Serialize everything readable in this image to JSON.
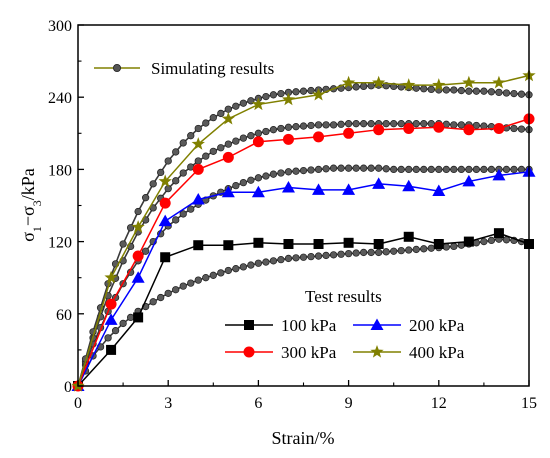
{
  "chart_data": {
    "type": "line",
    "xlabel": "Strain/%",
    "ylabel_parts": [
      "σ",
      "1",
      "−σ",
      "3",
      "/kPa"
    ],
    "xlim": [
      0,
      15
    ],
    "ylim": [
      0,
      300
    ],
    "xticks": [
      "0",
      "3",
      "6",
      "9",
      "12",
      "15"
    ],
    "yticks": [
      "0",
      "60",
      "120",
      "180",
      "240",
      "300"
    ],
    "grid": false,
    "legend_simulating": {
      "placement": "top-left",
      "label": "Simulating results"
    },
    "legend_test": {
      "placement": "bottom-right",
      "title": "Test results"
    },
    "test_series": [
      {
        "name": "100 kPa",
        "color": "#000000",
        "marker": "square",
        "x": [
          0,
          1.1,
          2.0,
          2.9,
          4.0,
          5.0,
          6.0,
          7.0,
          8.0,
          9.0,
          10.0,
          11.0,
          12.0,
          13.0,
          14.0,
          15.0
        ],
        "y": [
          0,
          30,
          57,
          107,
          117,
          117,
          119,
          118,
          118,
          119,
          118,
          124,
          118,
          120,
          127,
          118
        ]
      },
      {
        "name": "200 kPa",
        "color": "#0000ff",
        "marker": "triangle",
        "x": [
          0,
          1.1,
          2.0,
          2.9,
          4.0,
          5.0,
          6.0,
          7.0,
          8.0,
          9.0,
          10.0,
          11.0,
          12.0,
          13.0,
          14.0,
          15.0
        ],
        "y": [
          0,
          55,
          90,
          137,
          155,
          161,
          161,
          165,
          163,
          163,
          168,
          166,
          162,
          170,
          175,
          178
        ]
      },
      {
        "name": "300 kPa",
        "color": "#ff0000",
        "marker": "circle",
        "x": [
          0,
          1.1,
          2.0,
          2.9,
          4.0,
          5.0,
          6.0,
          7.0,
          8.0,
          9.0,
          10.0,
          11.0,
          12.0,
          13.0,
          14.0,
          15.0
        ],
        "y": [
          0,
          68,
          108,
          152,
          180,
          190,
          203,
          205,
          207,
          210,
          213,
          214,
          215,
          213,
          214,
          222
        ]
      },
      {
        "name": "400 kPa",
        "color": "#808000",
        "marker": "star",
        "x": [
          0,
          1.1,
          2.0,
          2.9,
          4.0,
          5.0,
          6.0,
          7.0,
          8.0,
          9.0,
          10.0,
          11.0,
          12.0,
          13.0,
          14.0,
          15.0
        ],
        "y": [
          0,
          90,
          132,
          170,
          201,
          222,
          234,
          238,
          242,
          252,
          252,
          250,
          250,
          252,
          252,
          258
        ]
      }
    ],
    "simulation_series": [
      {
        "name": "100 kPa",
        "x": [
          0,
          0.5,
          1,
          1.5,
          2,
          2.5,
          3,
          3.5,
          4,
          4.5,
          5,
          5.5,
          6,
          6.5,
          7,
          7.5,
          8,
          8.5,
          9,
          9.5,
          10,
          10.5,
          11,
          11.5,
          12,
          12.5,
          13,
          13.5,
          14,
          14.5,
          15
        ],
        "y": [
          0,
          25,
          40,
          52,
          62,
          70,
          77,
          83,
          88,
          92,
          96,
          99,
          102,
          104,
          106,
          107,
          108,
          109,
          110,
          111,
          111,
          112,
          113,
          114,
          115,
          116,
          118,
          120,
          122,
          121,
          119
        ]
      },
      {
        "name": "200 kPa",
        "x": [
          0,
          0.5,
          1,
          1.5,
          2,
          2.5,
          3,
          3.5,
          4,
          4.5,
          5,
          5.5,
          6,
          6.5,
          7,
          7.5,
          8,
          8.5,
          9,
          9.5,
          10,
          10.5,
          11,
          11.5,
          12,
          12.5,
          13,
          13.5,
          14,
          14.5,
          15
        ],
        "y": [
          0,
          35,
          62,
          85,
          104,
          120,
          133,
          143,
          151,
          158,
          164,
          169,
          173,
          176,
          178,
          179,
          180,
          181,
          181,
          181,
          181,
          180,
          180,
          180,
          180,
          180,
          180,
          180,
          180,
          180,
          180
        ]
      },
      {
        "name": "300 kPa",
        "x": [
          0,
          0.5,
          1,
          1.5,
          2,
          2.5,
          3,
          3.5,
          4,
          4.5,
          5,
          5.5,
          6,
          6.5,
          7,
          7.5,
          8,
          8.5,
          9,
          9.5,
          10,
          10.5,
          11,
          11.5,
          12,
          12.5,
          13,
          13.5,
          14,
          14.5,
          15
        ],
        "y": [
          0,
          40,
          75,
          104,
          128,
          148,
          164,
          177,
          187,
          195,
          201,
          206,
          210,
          213,
          215,
          216,
          217,
          217,
          218,
          218,
          218,
          218,
          218,
          218,
          218,
          217,
          217,
          216,
          215,
          214,
          213
        ]
      },
      {
        "name": "400 kPa",
        "x": [
          0,
          0.5,
          1,
          1.5,
          2,
          2.5,
          3,
          3.5,
          4,
          4.5,
          5,
          5.5,
          6,
          6.5,
          7,
          7.5,
          8,
          8.5,
          9,
          9.5,
          10,
          10.5,
          11,
          11.5,
          12,
          12.5,
          13,
          13.5,
          14,
          14.5,
          15
        ],
        "y": [
          0,
          45,
          85,
          118,
          145,
          168,
          187,
          202,
          214,
          223,
          230,
          235,
          239,
          242,
          244,
          245,
          246,
          247,
          248,
          249,
          250,
          249,
          248,
          247,
          246,
          246,
          245,
          245,
          244,
          243,
          242
        ]
      }
    ]
  }
}
